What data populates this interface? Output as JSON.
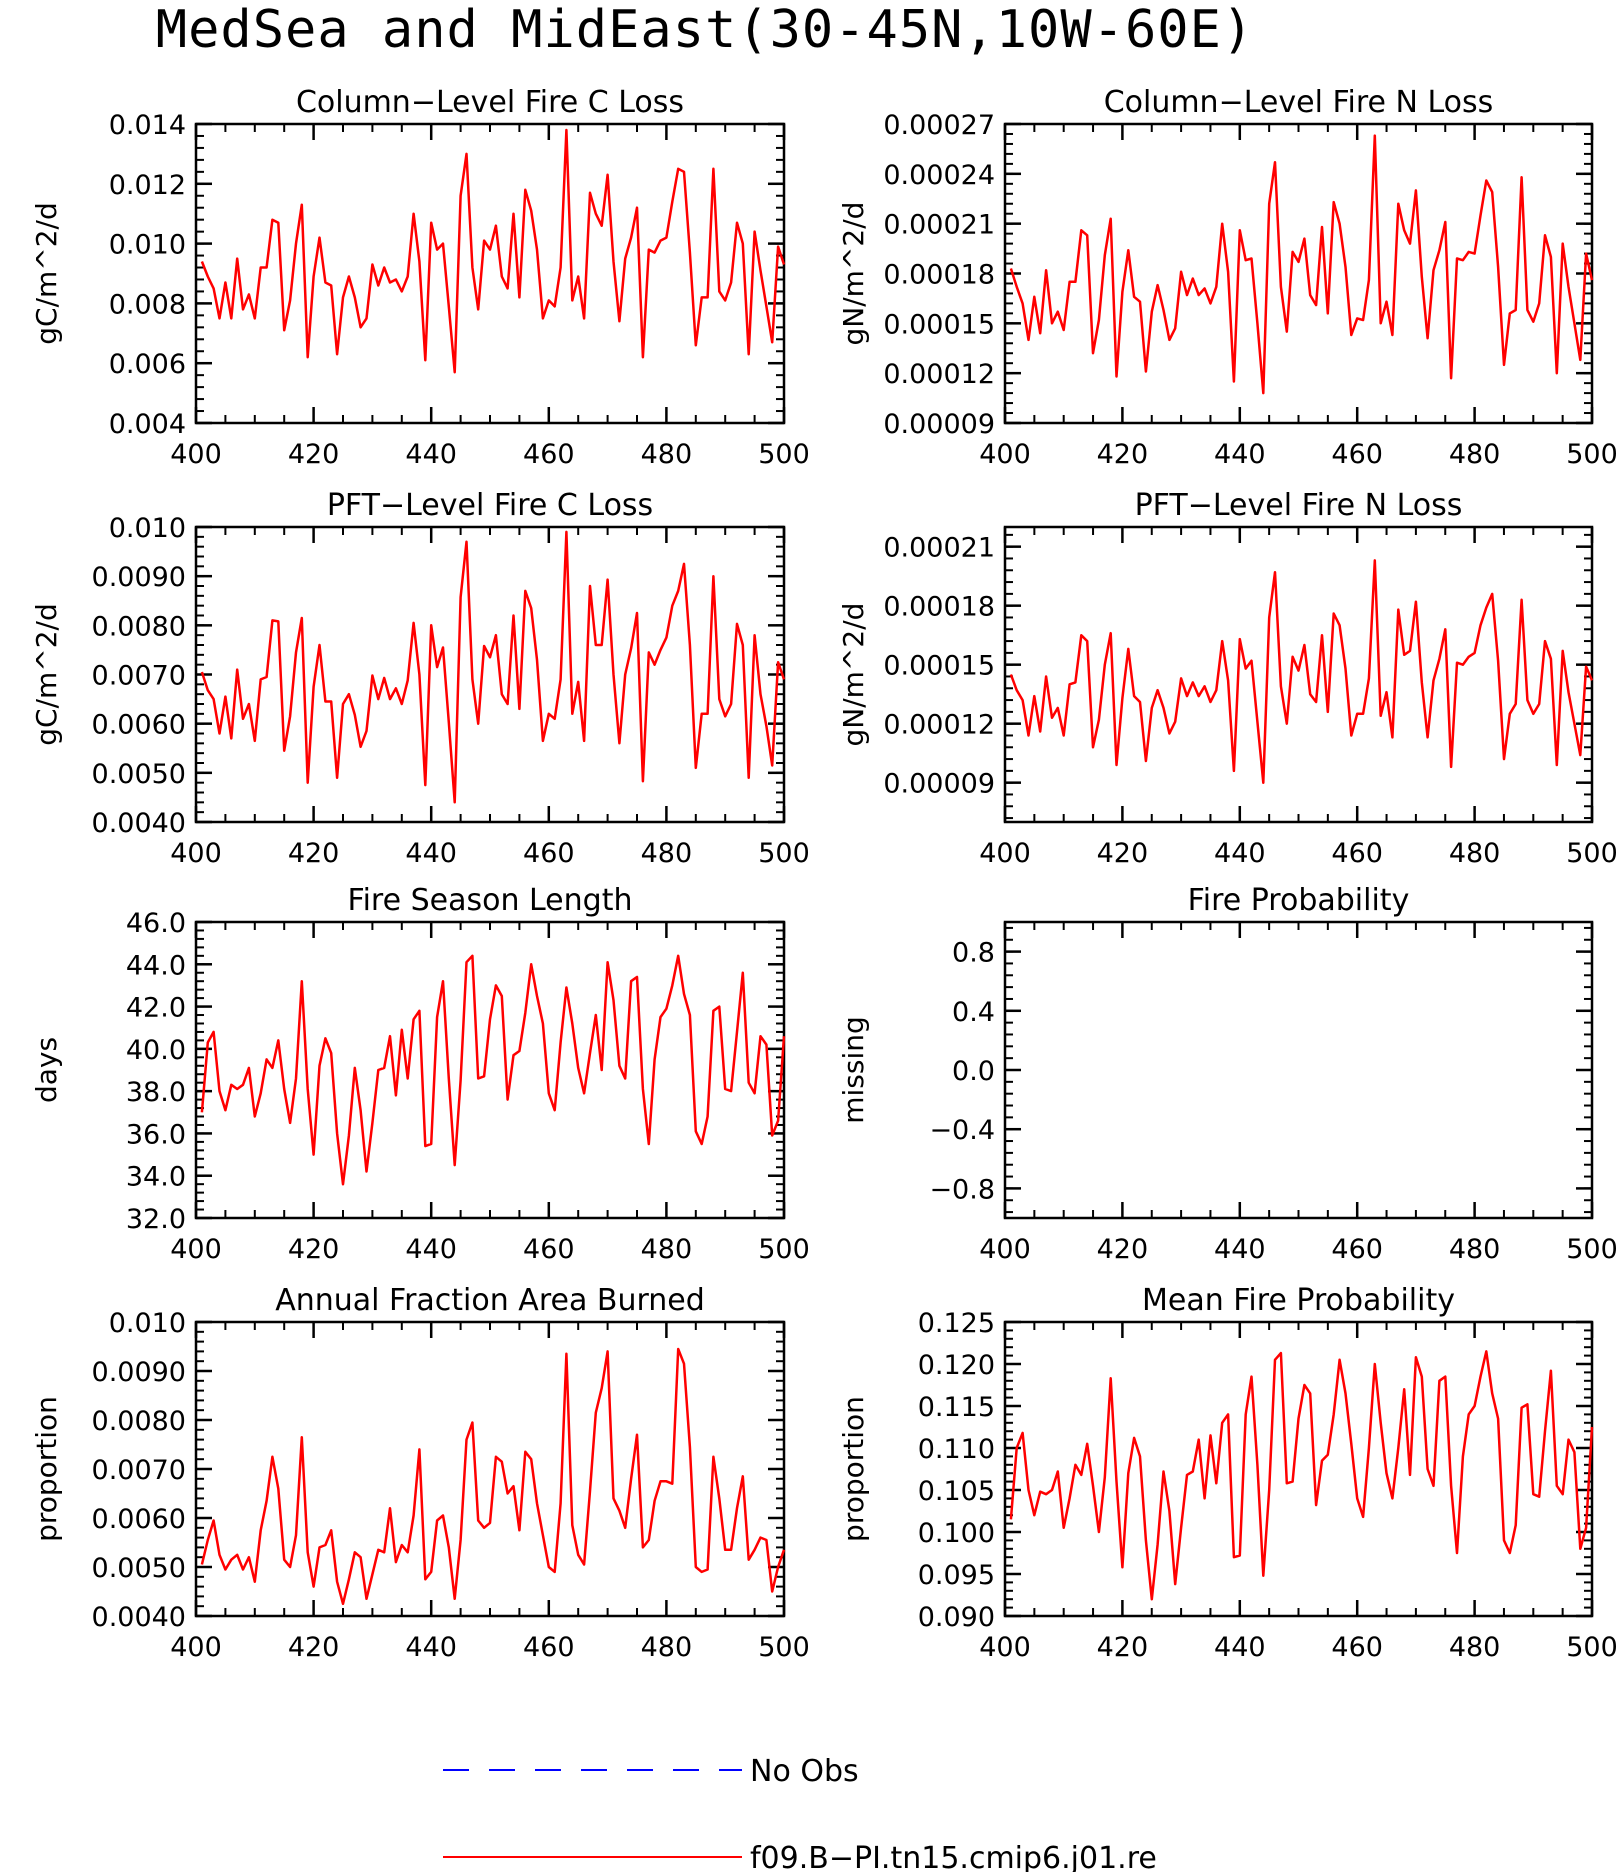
{
  "title": "MedSea and MidEast(30-45N,10W-60E)",
  "colors": {
    "model": "#ff0000",
    "obs": "#0000ff",
    "axis": "#000000"
  },
  "legend": [
    {
      "label": "No Obs",
      "color": "#0000ff",
      "style": "dashed"
    },
    {
      "label": "f09.B-PI.tn15.cmip6.j01.re",
      "color": "#ff0000",
      "style": "solid"
    }
  ],
  "chart_data": [
    {
      "type": "line",
      "title": "Column-Level Fire C Loss",
      "ylabel": "gC/m^2/d",
      "xlim": [
        400,
        500
      ],
      "xticks": [
        400,
        420,
        440,
        460,
        480,
        500
      ],
      "ylim": [
        0.004,
        0.014
      ],
      "yticks": [
        "0.004",
        "0.006",
        "0.008",
        "0.010",
        "0.012",
        "0.014"
      ],
      "x_start": 401,
      "x_step": 1,
      "series": [
        {
          "values": [
            0.0094,
            0.0089,
            0.0085,
            0.0075,
            0.0087,
            0.0075,
            0.0095,
            0.0078,
            0.0083,
            0.0075,
            0.0092,
            0.0092,
            0.0108,
            0.0107,
            0.0071,
            0.0081,
            0.01,
            0.0113,
            0.0062,
            0.0089,
            0.0102,
            0.0087,
            0.0086,
            0.0063,
            0.0082,
            0.0089,
            0.0082,
            0.0072,
            0.0075,
            0.0093,
            0.0086,
            0.0092,
            0.0087,
            0.0088,
            0.0084,
            0.0089,
            0.011,
            0.0094,
            0.0061,
            0.0107,
            0.0098,
            0.01,
            0.0079,
            0.0057,
            0.0116,
            0.013,
            0.0092,
            0.0078,
            0.0101,
            0.0098,
            0.0106,
            0.0089,
            0.0085,
            0.011,
            0.0082,
            0.0118,
            0.0111,
            0.0098,
            0.0075,
            0.0081,
            0.0079,
            0.0092,
            0.0138,
            0.0081,
            0.0089,
            0.0075,
            0.0117,
            0.011,
            0.0106,
            0.0123,
            0.0094,
            0.0074,
            0.0095,
            0.0102,
            0.0112,
            0.0062,
            0.0098,
            0.0097,
            0.0101,
            0.0102,
            0.0114,
            0.0125,
            0.0124,
            0.0097,
            0.0066,
            0.0082,
            0.0082,
            0.0125,
            0.0084,
            0.0081,
            0.0087,
            0.0107,
            0.01,
            0.0063,
            0.0104,
            0.0091,
            0.0079,
            0.0067,
            0.0099,
            0.0093
          ]
        }
      ]
    },
    {
      "type": "line",
      "title": "Column-Level Fire N Loss",
      "ylabel": "gN/m^2/d",
      "xlim": [
        400,
        500
      ],
      "xticks": [
        400,
        420,
        440,
        460,
        480,
        500
      ],
      "ylim": [
        9e-05,
        0.00027
      ],
      "yticks": [
        "0.00009",
        "0.00012",
        "0.00015",
        "0.00018",
        "0.00021",
        "0.00024",
        "0.00027"
      ],
      "x_start": 401,
      "x_step": 1,
      "series": [
        {
          "values": [
            0.000183,
            0.000172,
            0.000162,
            0.00014,
            0.000166,
            0.000144,
            0.000182,
            0.00015,
            0.000157,
            0.000146,
            0.000175,
            0.000175,
            0.000206,
            0.000203,
            0.000132,
            0.000152,
            0.000191,
            0.000213,
            0.000118,
            0.000169,
            0.000194,
            0.000166,
            0.000163,
            0.000121,
            0.000157,
            0.000173,
            0.000158,
            0.00014,
            0.000147,
            0.000181,
            0.000167,
            0.000177,
            0.000167,
            0.000171,
            0.000162,
            0.000172,
            0.00021,
            0.000181,
            0.000115,
            0.000206,
            0.000188,
            0.000189,
            0.00015,
            0.000108,
            0.000222,
            0.000247,
            0.000172,
            0.000145,
            0.000193,
            0.000187,
            0.000201,
            0.000167,
            0.000161,
            0.000208,
            0.000156,
            0.000223,
            0.00021,
            0.000184,
            0.000143,
            0.000153,
            0.000152,
            0.000176,
            0.000263,
            0.00015,
            0.000163,
            0.000143,
            0.000222,
            0.000206,
            0.000198,
            0.00023,
            0.000178,
            0.000141,
            0.000182,
            0.000194,
            0.000211,
            0.000117,
            0.000189,
            0.000188,
            0.000193,
            0.000192,
            0.000215,
            0.000236,
            0.000229,
            0.000184,
            0.000125,
            0.000156,
            0.000158,
            0.000238,
            0.000158,
            0.000151,
            0.000162,
            0.000203,
            0.00019,
            0.00012,
            0.000198,
            0.000172,
            0.00015,
            0.000128,
            0.000192,
            0.000176
          ]
        }
      ]
    },
    {
      "type": "line",
      "title": "PFT-Level Fire C Loss",
      "ylabel": "gC/m^2/d",
      "xlim": [
        400,
        500
      ],
      "xticks": [
        400,
        420,
        440,
        460,
        480,
        500
      ],
      "ylim": [
        0.004,
        0.01
      ],
      "yticks": [
        "0.0040",
        "0.0050",
        "0.0060",
        "0.0070",
        "0.0080",
        "0.0090",
        "0.010"
      ],
      "x_start": 401,
      "x_step": 1,
      "series": [
        {
          "values": [
            0.00705,
            0.00668,
            0.0065,
            0.0058,
            0.00655,
            0.0057,
            0.0071,
            0.0061,
            0.0064,
            0.00565,
            0.0069,
            0.00695,
            0.0081,
            0.00808,
            0.00545,
            0.00615,
            0.00745,
            0.00815,
            0.0048,
            0.00675,
            0.0076,
            0.00645,
            0.00645,
            0.0049,
            0.0064,
            0.0066,
            0.00618,
            0.00553,
            0.00585,
            0.00698,
            0.0065,
            0.00693,
            0.0065,
            0.00672,
            0.0064,
            0.00688,
            0.00805,
            0.007,
            0.00475,
            0.008,
            0.00715,
            0.00755,
            0.00603,
            0.0044,
            0.00857,
            0.0097,
            0.0069,
            0.006,
            0.00758,
            0.00735,
            0.0078,
            0.0066,
            0.0064,
            0.0082,
            0.0063,
            0.0087,
            0.00835,
            0.0073,
            0.00565,
            0.0062,
            0.0061,
            0.0069,
            0.0099,
            0.0062,
            0.00685,
            0.00565,
            0.0088,
            0.0076,
            0.0076,
            0.00893,
            0.007,
            0.0056,
            0.007,
            0.00753,
            0.00825,
            0.00483,
            0.00745,
            0.0072,
            0.0075,
            0.00775,
            0.0084,
            0.0087,
            0.00925,
            0.0076,
            0.0051,
            0.0062,
            0.0062,
            0.009,
            0.0065,
            0.00615,
            0.0064,
            0.00803,
            0.0076,
            0.0049,
            0.0078,
            0.0066,
            0.00595,
            0.00515,
            0.00725,
            0.0069
          ]
        }
      ]
    },
    {
      "type": "line",
      "title": "PFT-Level Fire N Loss",
      "ylabel": "gN/m^2/d",
      "xlim": [
        400,
        500
      ],
      "xticks": [
        400,
        420,
        440,
        460,
        480,
        500
      ],
      "ylim": [
        7e-05,
        0.00022
      ],
      "yticks": [
        "0.00009",
        "0.00012",
        "0.00015",
        "0.00018",
        "0.00021"
      ],
      "x_start": 401,
      "x_step": 1,
      "series": [
        {
          "values": [
            0.000145,
            0.000137,
            0.000132,
            0.000114,
            0.000134,
            0.000116,
            0.000144,
            0.000123,
            0.000128,
            0.000114,
            0.00014,
            0.000141,
            0.000165,
            0.000162,
            0.000108,
            0.000122,
            0.00015,
            0.000166,
            9.9e-05,
            0.000133,
            0.000158,
            0.000134,
            0.000131,
            0.000101,
            0.000128,
            0.000137,
            0.000128,
            0.000115,
            0.000121,
            0.000143,
            0.000134,
            0.000141,
            0.000134,
            0.000139,
            0.000131,
            0.000137,
            0.000162,
            0.000142,
            9.6e-05,
            0.000163,
            0.000148,
            0.000152,
            0.000121,
            9e-05,
            0.000174,
            0.000197,
            0.000139,
            0.00012,
            0.000154,
            0.000147,
            0.00016,
            0.000135,
            0.000131,
            0.000165,
            0.000126,
            0.000176,
            0.00017,
            0.000148,
            0.000114,
            0.000125,
            0.000125,
            0.000143,
            0.000203,
            0.000124,
            0.000136,
            0.000113,
            0.000178,
            0.000155,
            0.000157,
            0.000182,
            0.000141,
            0.000113,
            0.000142,
            0.000153,
            0.000168,
            9.8e-05,
            0.000151,
            0.00015,
            0.000154,
            0.000156,
            0.00017,
            0.000179,
            0.000186,
            0.000152,
            0.000102,
            0.000125,
            0.00013,
            0.000183,
            0.000132,
            0.000125,
            0.00013,
            0.000162,
            0.000153,
            9.9e-05,
            0.000157,
            0.000136,
            0.00012,
            0.000104,
            0.000149,
            0.000142
          ]
        }
      ]
    },
    {
      "type": "line",
      "title": "Fire Season Length",
      "ylabel": "days",
      "xlim": [
        400,
        500
      ],
      "xticks": [
        400,
        420,
        440,
        460,
        480,
        500
      ],
      "ylim": [
        32,
        46
      ],
      "yticks": [
        "32.0",
        "34.0",
        "36.0",
        "38.0",
        "40.0",
        "42.0",
        "44.0",
        "46.0"
      ],
      "x_start": 401,
      "x_step": 1,
      "series": [
        {
          "values": [
            37.0,
            40.3,
            40.8,
            38.0,
            37.1,
            38.3,
            38.1,
            38.3,
            39.1,
            36.8,
            37.9,
            39.5,
            39.1,
            40.4,
            38.1,
            36.5,
            38.6,
            43.2,
            38.1,
            35.0,
            39.2,
            40.5,
            39.8,
            36.0,
            33.6,
            35.9,
            39.1,
            37.1,
            34.2,
            36.5,
            39.0,
            39.1,
            40.6,
            37.8,
            40.9,
            38.6,
            41.4,
            41.8,
            35.4,
            35.5,
            41.5,
            43.2,
            38.6,
            34.5,
            38.5,
            44.1,
            44.4,
            38.6,
            38.7,
            41.4,
            43.0,
            42.5,
            37.6,
            39.7,
            39.9,
            41.7,
            44.0,
            42.5,
            41.2,
            37.9,
            37.1,
            40.3,
            42.9,
            41.2,
            39.1,
            37.9,
            39.8,
            41.6,
            39.0,
            44.1,
            42.3,
            39.2,
            38.6,
            43.2,
            43.4,
            38.1,
            35.5,
            39.5,
            41.5,
            41.9,
            43.0,
            44.4,
            42.6,
            41.6,
            36.1,
            35.5,
            36.8,
            41.8,
            42.0,
            38.1,
            38.0,
            40.8,
            43.6,
            38.4,
            37.9,
            40.6,
            40.2,
            35.9,
            36.6,
            40.6
          ]
        }
      ]
    },
    {
      "type": "line",
      "title": "Fire Probability",
      "ylabel": "missing",
      "xlim": [
        400,
        500
      ],
      "xticks": [
        400,
        420,
        440,
        460,
        480,
        500
      ],
      "ylim": [
        -1,
        1
      ],
      "yticks": [
        "-0.8",
        "-0.4",
        "0.0",
        "0.4",
        "0.8"
      ],
      "x_start": 401,
      "x_step": 1,
      "series": []
    },
    {
      "type": "line",
      "title": "Annual Fraction Area Burned",
      "ylabel": "proportion",
      "xlim": [
        400,
        500
      ],
      "xticks": [
        400,
        420,
        440,
        460,
        480,
        500
      ],
      "ylim": [
        0.004,
        0.01
      ],
      "yticks": [
        "0.0040",
        "0.0050",
        "0.0060",
        "0.0070",
        "0.0080",
        "0.0090",
        "0.010"
      ],
      "x_start": 401,
      "x_step": 1,
      "series": [
        {
          "values": [
            0.00505,
            0.00555,
            0.00595,
            0.00525,
            0.00495,
            0.00515,
            0.00525,
            0.00495,
            0.0052,
            0.0047,
            0.00575,
            0.00635,
            0.00725,
            0.0066,
            0.00515,
            0.005,
            0.00565,
            0.00765,
            0.0053,
            0.0046,
            0.0054,
            0.00545,
            0.00575,
            0.0047,
            0.00425,
            0.00475,
            0.0053,
            0.0052,
            0.00435,
            0.00485,
            0.00535,
            0.0053,
            0.0062,
            0.0051,
            0.00545,
            0.0053,
            0.00605,
            0.0074,
            0.00475,
            0.0049,
            0.00595,
            0.00605,
            0.0054,
            0.00435,
            0.00555,
            0.0076,
            0.00795,
            0.00595,
            0.0058,
            0.0059,
            0.00725,
            0.00715,
            0.0065,
            0.00665,
            0.00575,
            0.00735,
            0.0072,
            0.0063,
            0.00565,
            0.005,
            0.0049,
            0.0063,
            0.00935,
            0.00585,
            0.00525,
            0.00505,
            0.00655,
            0.00815,
            0.00865,
            0.0094,
            0.0064,
            0.00615,
            0.0058,
            0.0068,
            0.0077,
            0.0054,
            0.00555,
            0.00635,
            0.00675,
            0.00675,
            0.0067,
            0.00945,
            0.00915,
            0.00745,
            0.005,
            0.0049,
            0.00495,
            0.00725,
            0.0064,
            0.00535,
            0.00535,
            0.0062,
            0.00685,
            0.00515,
            0.00535,
            0.0056,
            0.00555,
            0.0045,
            0.005,
            0.00535
          ]
        }
      ]
    },
    {
      "type": "line",
      "title": "Mean Fire Probability",
      "ylabel": "proportion",
      "xlim": [
        400,
        500
      ],
      "xticks": [
        400,
        420,
        440,
        460,
        480,
        500
      ],
      "ylim": [
        0.09,
        0.125
      ],
      "yticks": [
        "0.090",
        "0.095",
        "0.100",
        "0.105",
        "0.110",
        "0.115",
        "0.120",
        "0.125"
      ],
      "x_start": 401,
      "x_step": 1,
      "series": [
        {
          "values": [
            0.1015,
            0.11,
            0.1118,
            0.105,
            0.102,
            0.1048,
            0.1045,
            0.105,
            0.1072,
            0.1005,
            0.104,
            0.108,
            0.1068,
            0.1105,
            0.1055,
            0.1,
            0.1065,
            0.1183,
            0.106,
            0.0958,
            0.107,
            0.1112,
            0.109,
            0.099,
            0.092,
            0.0985,
            0.1072,
            0.1025,
            0.0938,
            0.1005,
            0.1068,
            0.1072,
            0.111,
            0.104,
            0.1115,
            0.1058,
            0.113,
            0.114,
            0.097,
            0.0972,
            0.114,
            0.1185,
            0.108,
            0.0948,
            0.105,
            0.1205,
            0.1213,
            0.1058,
            0.106,
            0.1135,
            0.1175,
            0.1165,
            0.1032,
            0.1085,
            0.1092,
            0.114,
            0.1205,
            0.1165,
            0.1105,
            0.104,
            0.1018,
            0.11,
            0.12,
            0.113,
            0.107,
            0.104,
            0.11,
            0.117,
            0.1068,
            0.1208,
            0.1185,
            0.1075,
            0.1055,
            0.118,
            0.1185,
            0.1055,
            0.0975,
            0.109,
            0.114,
            0.115,
            0.1185,
            0.1215,
            0.1165,
            0.1135,
            0.099,
            0.0975,
            0.1008,
            0.1148,
            0.1152,
            0.1045,
            0.1042,
            0.112,
            0.1192,
            0.1055,
            0.1045,
            0.111,
            0.1095,
            0.098,
            0.1005,
            0.1125
          ]
        }
      ]
    }
  ]
}
